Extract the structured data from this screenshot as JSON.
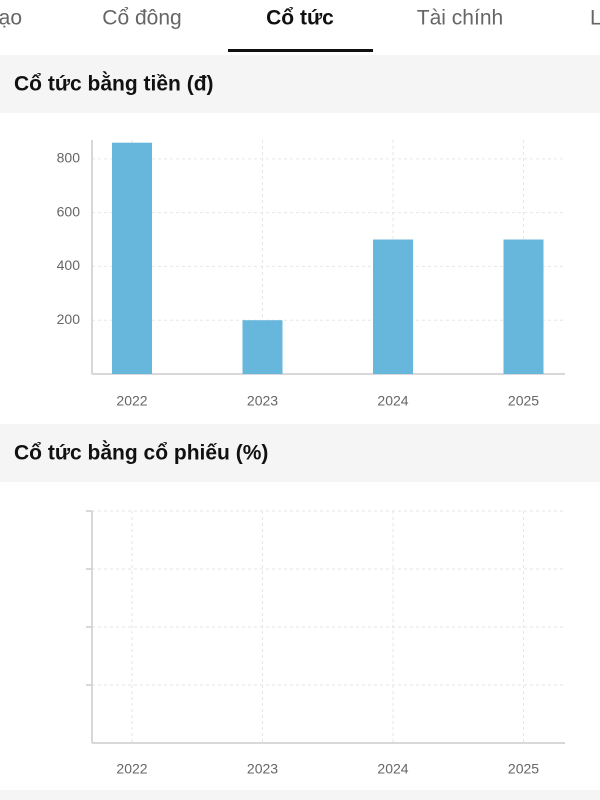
{
  "tabs": [
    "ạo",
    "Cổ đông",
    "Cổ tức",
    "Tài chính",
    "Li"
  ],
  "active_tab": 2,
  "chart_data": [
    {
      "type": "bar",
      "title": "Cổ tức bằng tiền (đ)",
      "categories": [
        "2022",
        "2023",
        "2024",
        "2025"
      ],
      "values": [
        860,
        200,
        500,
        500
      ],
      "color": "#67b7dc",
      "ylim": [
        0,
        870
      ],
      "yticks": [
        200,
        400,
        600,
        800
      ],
      "grid": true
    },
    {
      "type": "bar",
      "title": "Cổ tức bằng cổ phiếu (%)",
      "categories": [
        "2022",
        "2023",
        "2024",
        "2025"
      ],
      "values": [
        null,
        null,
        null,
        null
      ],
      "color": "#67b7dc",
      "grid": true
    }
  ]
}
